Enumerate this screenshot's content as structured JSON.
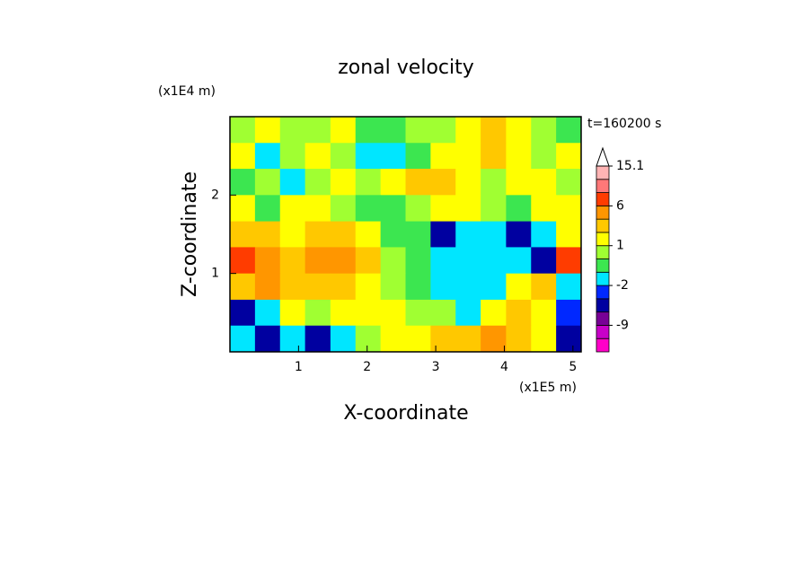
{
  "chart_data": {
    "type": "contour",
    "title": "zonal velocity",
    "xlabel": "X-coordinate",
    "ylabel": "Z-coordinate",
    "xunit": "(x1E5 m)",
    "yunit": "(x1E4 m)",
    "annotation": "t=160200 s",
    "xlim": [
      0,
      5.12
    ],
    "ylim": [
      0,
      3
    ],
    "xticks": [
      1,
      2,
      3,
      4,
      5
    ],
    "yticks": [
      1,
      2
    ],
    "x": [
      0.18,
      0.55,
      0.91,
      1.28,
      1.65,
      2.01,
      2.38,
      2.74,
      3.11,
      3.47,
      3.84,
      4.21,
      4.57,
      4.94
    ],
    "y": [
      2.83,
      2.5,
      2.17,
      1.83,
      1.5,
      1.17,
      0.83,
      0.5,
      0.17
    ],
    "z": [
      [
        0,
        1.5,
        0.5,
        0.5,
        1.5,
        -0.5,
        -0.5,
        0.5,
        0.5,
        1.5,
        2,
        1.5,
        0.5,
        -0.5
      ],
      [
        1,
        -1.5,
        0.5,
        1.5,
        0.5,
        -1.5,
        -1.5,
        -0.5,
        1.5,
        1.5,
        2.5,
        1.5,
        0.5,
        1.5
      ],
      [
        -0.5,
        0.5,
        -1.5,
        0.5,
        1.5,
        0.5,
        1.5,
        2.5,
        2.5,
        1.5,
        0.5,
        1.5,
        1.5,
        0.5
      ],
      [
        1.5,
        -0.5,
        1.5,
        1.5,
        0.5,
        -0.5,
        -0.5,
        0.5,
        1.5,
        1.5,
        0.5,
        -0.5,
        1.5,
        1.5
      ],
      [
        2.5,
        2.5,
        1.5,
        2.5,
        2.5,
        1.5,
        -0.5,
        -0.5,
        -5,
        -1.5,
        -1.5,
        -5,
        -1.5,
        1.5
      ],
      [
        7,
        4,
        2.5,
        4,
        4,
        2.5,
        0.5,
        -0.5,
        -1.5,
        -1.5,
        -1.5,
        -1.5,
        -5,
        7
      ],
      [
        2.5,
        4,
        2.5,
        2.5,
        2.5,
        1.5,
        0.5,
        -0.5,
        -1.5,
        -1.5,
        -1.5,
        1.5,
        2.5,
        -1.5
      ],
      [
        -5,
        -1.5,
        1.5,
        0.5,
        1.5,
        1.5,
        1.5,
        0.5,
        0.5,
        -1.5,
        1.5,
        2.5,
        1.5,
        -3
      ],
      [
        -1.5,
        -5,
        -1.5,
        -5,
        -1.5,
        0.5,
        1.5,
        1.5,
        2.5,
        2.5,
        4,
        2.5,
        1.5,
        -5
      ]
    ],
    "levels": [
      -15,
      -12,
      -9,
      -6,
      -4,
      -2,
      -1,
      0,
      1,
      2,
      3,
      6,
      9,
      12,
      15.1
    ],
    "colors": [
      "#ff00c8",
      "#c800c8",
      "#780096",
      "#0000a0",
      "#0028ff",
      "#00e6ff",
      "#3ce650",
      "#a0ff32",
      "#ffff00",
      "#ffc800",
      "#ff9600",
      "#ff3c00",
      "#ff7878",
      "#ffb4b4"
    ],
    "colorbar_ticks": [
      -9,
      -2,
      1,
      6,
      15.1
    ]
  }
}
